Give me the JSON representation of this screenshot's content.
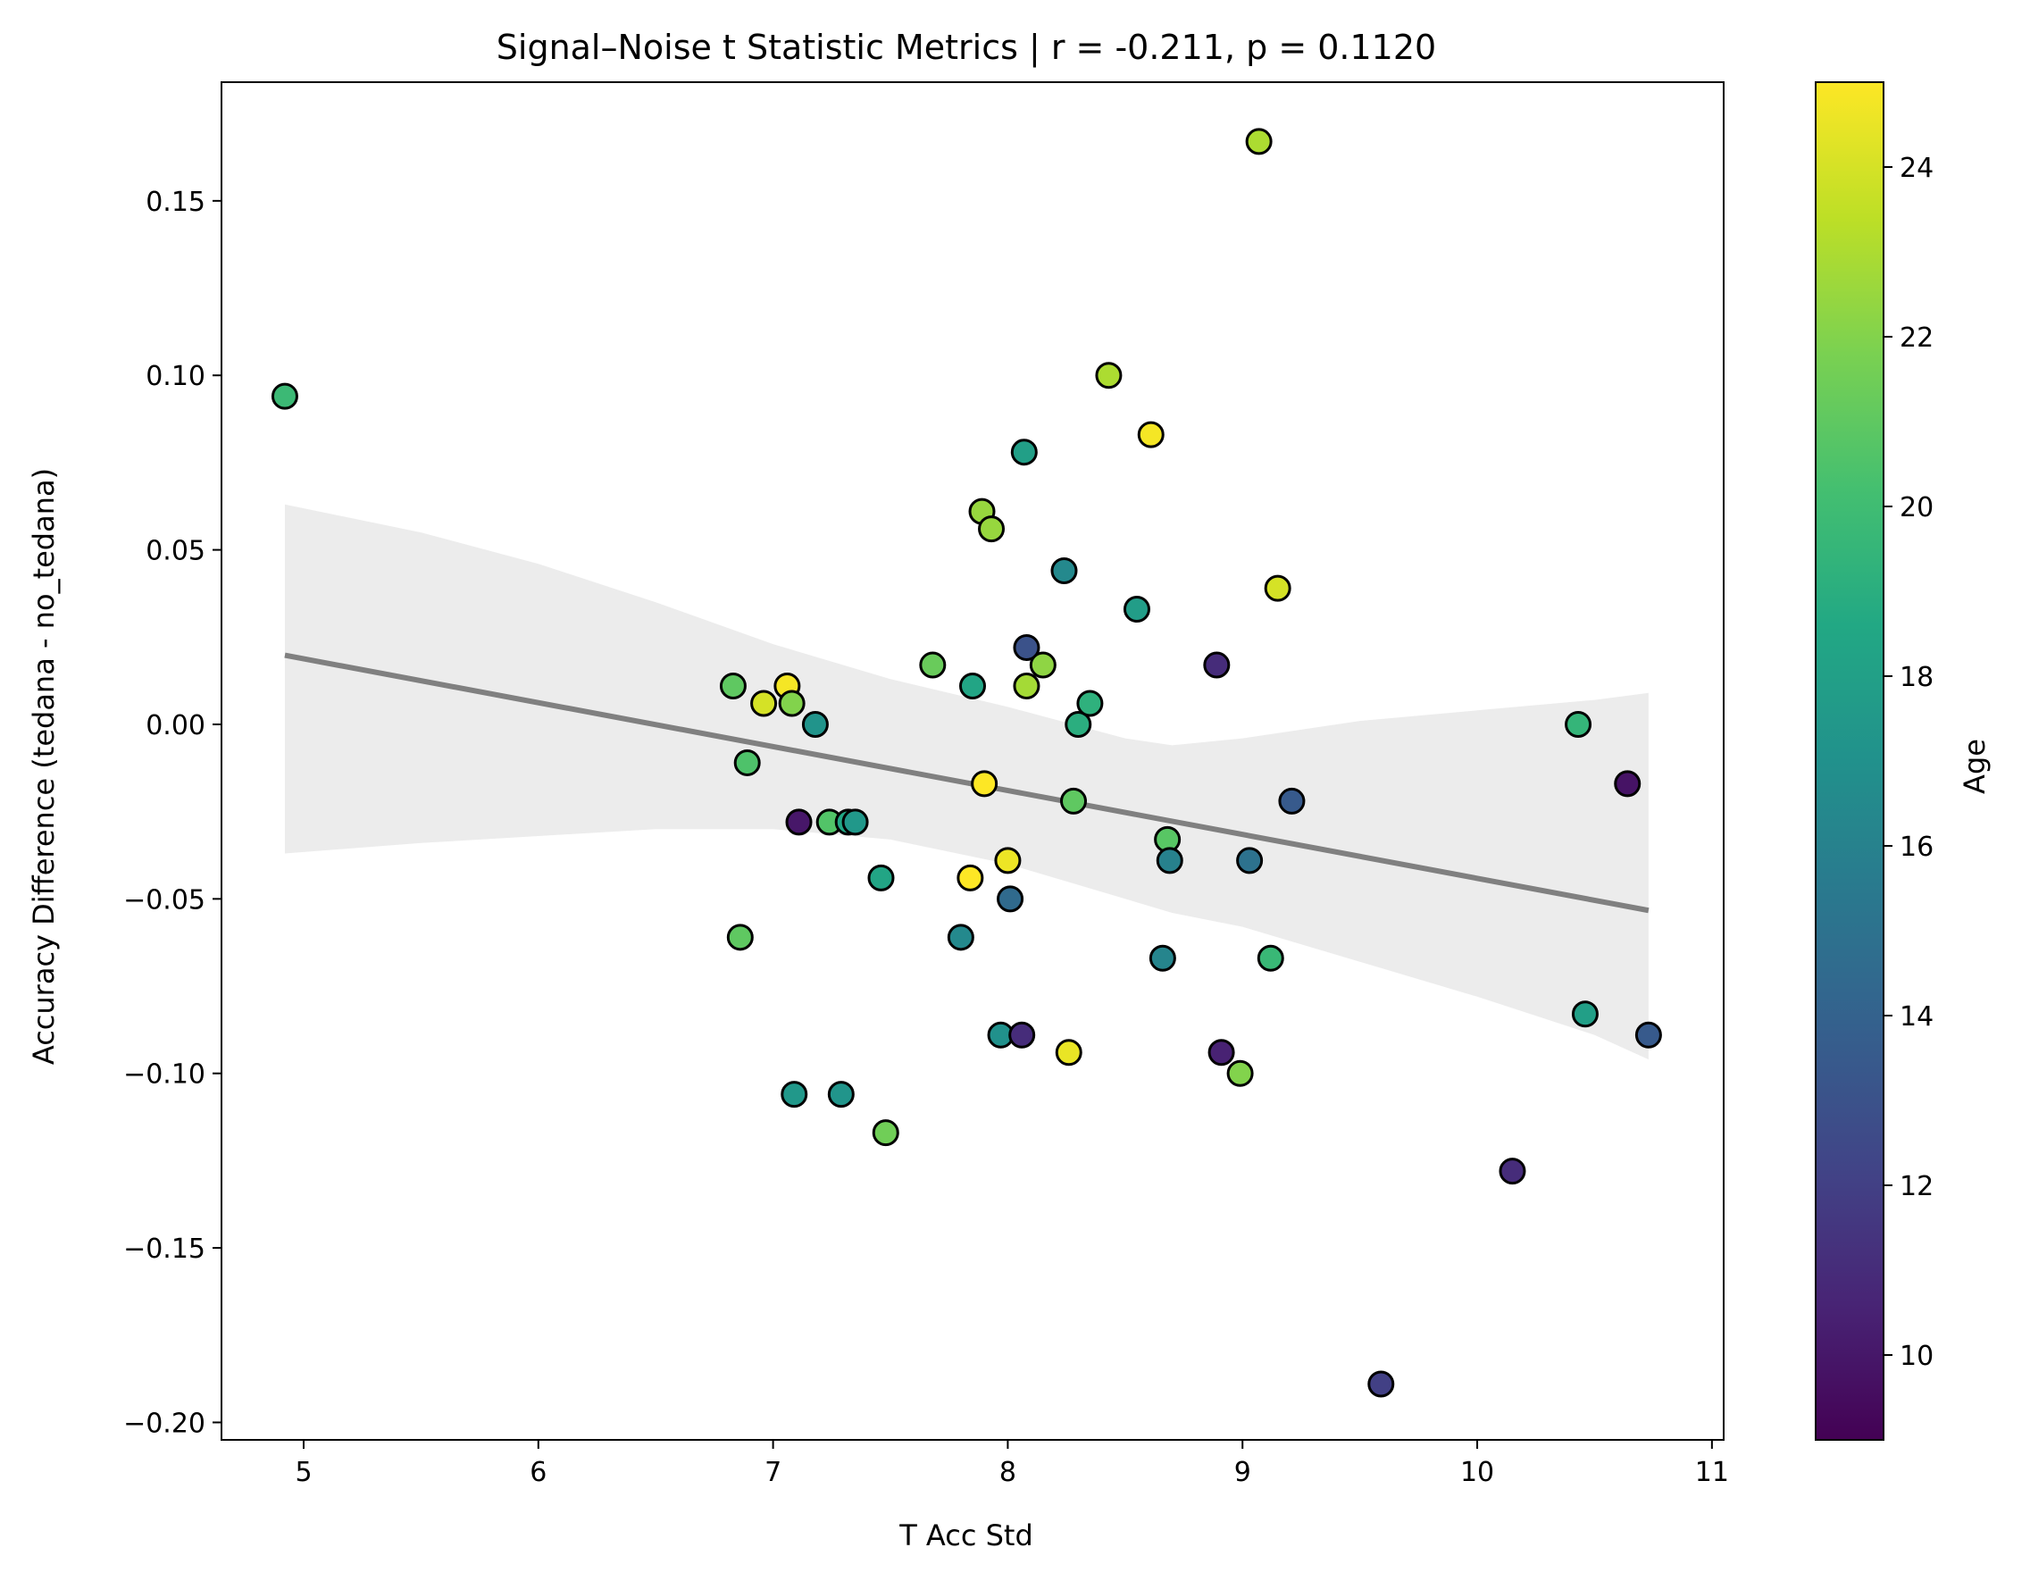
{
  "chart_data": {
    "type": "scatter",
    "title": "Signal–Noise t Statistic Metrics | r = -0.211, p = 0.1120",
    "xlabel": "T Acc Std",
    "ylabel": "Accuracy Difference (tedana - no_tedana)",
    "xlim": [
      4.65,
      11.05
    ],
    "ylim": [
      -0.205,
      0.184
    ],
    "xticks": [
      5,
      6,
      7,
      8,
      9,
      10,
      11
    ],
    "xtick_labels": [
      "5",
      "6",
      "7",
      "8",
      "9",
      "10",
      "11"
    ],
    "yticks": [
      -0.2,
      -0.15,
      -0.1,
      -0.05,
      0.0,
      0.05,
      0.1,
      0.15
    ],
    "ytick_labels": [
      "−0.20",
      "−0.15",
      "−0.10",
      "−0.05",
      "0.00",
      "0.05",
      "0.10",
      "0.15"
    ],
    "grid": false,
    "colorbar": {
      "label": "Age",
      "colormap": "viridis",
      "range": [
        9,
        25
      ],
      "ticks": [
        10,
        12,
        14,
        16,
        18,
        20,
        22,
        24
      ],
      "tick_labels": [
        "10",
        "12",
        "14",
        "16",
        "18",
        "20",
        "22",
        "24"
      ]
    },
    "points": [
      {
        "x": 4.92,
        "y": 0.094,
        "age": 19.8
      },
      {
        "x": 6.83,
        "y": 0.011,
        "age": 21.0
      },
      {
        "x": 6.86,
        "y": -0.061,
        "age": 21.0
      },
      {
        "x": 6.89,
        "y": -0.011,
        "age": 20.5
      },
      {
        "x": 6.96,
        "y": 0.006,
        "age": 24.0
      },
      {
        "x": 7.06,
        "y": 0.011,
        "age": 24.8
      },
      {
        "x": 7.08,
        "y": 0.006,
        "age": 22.0
      },
      {
        "x": 7.09,
        "y": -0.106,
        "age": 17.5
      },
      {
        "x": 7.11,
        "y": -0.028,
        "age": 10.0
      },
      {
        "x": 7.18,
        "y": 0.0,
        "age": 17.2
      },
      {
        "x": 7.24,
        "y": -0.028,
        "age": 20.6
      },
      {
        "x": 7.29,
        "y": -0.106,
        "age": 17.3
      },
      {
        "x": 7.32,
        "y": -0.028,
        "age": 18.5
      },
      {
        "x": 7.35,
        "y": -0.028,
        "age": 17.5
      },
      {
        "x": 7.46,
        "y": -0.044,
        "age": 18.4
      },
      {
        "x": 7.48,
        "y": -0.117,
        "age": 21.5
      },
      {
        "x": 7.68,
        "y": 0.017,
        "age": 21.3
      },
      {
        "x": 7.8,
        "y": -0.061,
        "age": 16.5
      },
      {
        "x": 7.84,
        "y": -0.044,
        "age": 25.0
      },
      {
        "x": 7.85,
        "y": 0.011,
        "age": 18.4
      },
      {
        "x": 7.89,
        "y": 0.061,
        "age": 22.5
      },
      {
        "x": 7.9,
        "y": -0.017,
        "age": 25.0
      },
      {
        "x": 7.93,
        "y": 0.056,
        "age": 22.5
      },
      {
        "x": 7.97,
        "y": -0.089,
        "age": 17.0
      },
      {
        "x": 8.0,
        "y": -0.039,
        "age": 24.6
      },
      {
        "x": 8.01,
        "y": -0.05,
        "age": 14.5
      },
      {
        "x": 8.06,
        "y": -0.089,
        "age": 11.0
      },
      {
        "x": 8.07,
        "y": 0.078,
        "age": 18.0
      },
      {
        "x": 8.08,
        "y": 0.022,
        "age": 13.0
      },
      {
        "x": 8.08,
        "y": 0.011,
        "age": 22.8
      },
      {
        "x": 8.15,
        "y": 0.017,
        "age": 22.3
      },
      {
        "x": 8.24,
        "y": 0.044,
        "age": 16.5
      },
      {
        "x": 8.26,
        "y": -0.094,
        "age": 24.5
      },
      {
        "x": 8.28,
        "y": -0.022,
        "age": 21.0
      },
      {
        "x": 8.3,
        "y": 0.0,
        "age": 19.0
      },
      {
        "x": 8.35,
        "y": 0.006,
        "age": 19.2
      },
      {
        "x": 8.43,
        "y": 0.1,
        "age": 23.0
      },
      {
        "x": 8.55,
        "y": 0.033,
        "age": 17.8
      },
      {
        "x": 8.61,
        "y": 0.083,
        "age": 24.8
      },
      {
        "x": 8.66,
        "y": -0.067,
        "age": 16.2
      },
      {
        "x": 8.68,
        "y": -0.033,
        "age": 20.8
      },
      {
        "x": 8.69,
        "y": -0.039,
        "age": 16.0
      },
      {
        "x": 8.89,
        "y": 0.017,
        "age": 11.0
      },
      {
        "x": 8.91,
        "y": -0.094,
        "age": 10.5
      },
      {
        "x": 8.99,
        "y": -0.1,
        "age": 22.0
      },
      {
        "x": 9.03,
        "y": -0.039,
        "age": 15.0
      },
      {
        "x": 9.07,
        "y": 0.167,
        "age": 23.0
      },
      {
        "x": 9.12,
        "y": -0.067,
        "age": 19.7
      },
      {
        "x": 9.15,
        "y": 0.039,
        "age": 24.0
      },
      {
        "x": 9.21,
        "y": -0.022,
        "age": 13.5
      },
      {
        "x": 9.59,
        "y": -0.189,
        "age": 12.0
      },
      {
        "x": 10.15,
        "y": -0.128,
        "age": 11.0
      },
      {
        "x": 10.43,
        "y": 0.0,
        "age": 19.5
      },
      {
        "x": 10.46,
        "y": -0.083,
        "age": 18.0
      },
      {
        "x": 10.64,
        "y": -0.017,
        "age": 9.8
      },
      {
        "x": 10.73,
        "y": -0.089,
        "age": 13.5
      }
    ],
    "regression_line": {
      "x": [
        4.92,
        10.73
      ],
      "y": [
        0.0198,
        -0.0533
      ],
      "color": "#808080"
    },
    "confidence_band": {
      "x": [
        4.92,
        5.5,
        6.0,
        6.5,
        7.0,
        7.5,
        8.0,
        8.5,
        8.7,
        9.0,
        9.5,
        10.0,
        10.5,
        10.73
      ],
      "lower": [
        -0.037,
        -0.034,
        -0.032,
        -0.03,
        -0.03,
        -0.033,
        -0.04,
        -0.05,
        -0.054,
        -0.058,
        -0.068,
        -0.078,
        -0.089,
        -0.096
      ],
      "upper": [
        0.063,
        0.055,
        0.046,
        0.035,
        0.023,
        0.013,
        0.005,
        -0.004,
        -0.006,
        -0.004,
        0.001,
        0.004,
        0.007,
        0.009
      ],
      "color": "#ececec"
    },
    "marker_edge_color": "#000000"
  }
}
